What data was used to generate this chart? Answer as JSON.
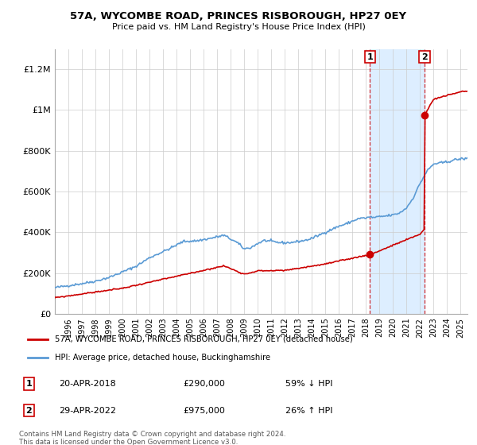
{
  "title": "57A, WYCOMBE ROAD, PRINCES RISBOROUGH, HP27 0EY",
  "subtitle": "Price paid vs. HM Land Registry's House Price Index (HPI)",
  "line1_label": "57A, WYCOMBE ROAD, PRINCES RISBOROUGH, HP27 0EY (detached house)",
  "line2_label": "HPI: Average price, detached house, Buckinghamshire",
  "line1_color": "#cc0000",
  "line2_color": "#5b9bd5",
  "shade_color": "#ddeeff",
  "marker1_year": 2018.3,
  "marker1_price": 290000,
  "marker1_date": "20-APR-2018",
  "marker1_pct": "59% ↓ HPI",
  "marker2_year": 2022.33,
  "marker2_price": 975000,
  "marker2_date": "29-APR-2022",
  "marker2_pct": "26% ↑ HPI",
  "footnote": "Contains HM Land Registry data © Crown copyright and database right 2024.\nThis data is licensed under the Open Government Licence v3.0.",
  "ylim": [
    0,
    1300000
  ],
  "xlim": [
    1995.0,
    2025.5
  ],
  "yticks": [
    0,
    200000,
    400000,
    600000,
    800000,
    1000000,
    1200000
  ],
  "ytick_labels": [
    "£0",
    "£200K",
    "£400K",
    "£600K",
    "£800K",
    "£1M",
    "£1.2M"
  ],
  "xticks": [
    1996,
    1997,
    1998,
    1999,
    2000,
    2001,
    2002,
    2003,
    2004,
    2005,
    2006,
    2007,
    2008,
    2009,
    2010,
    2011,
    2012,
    2013,
    2014,
    2015,
    2016,
    2017,
    2018,
    2019,
    2020,
    2021,
    2022,
    2023,
    2024,
    2025
  ]
}
